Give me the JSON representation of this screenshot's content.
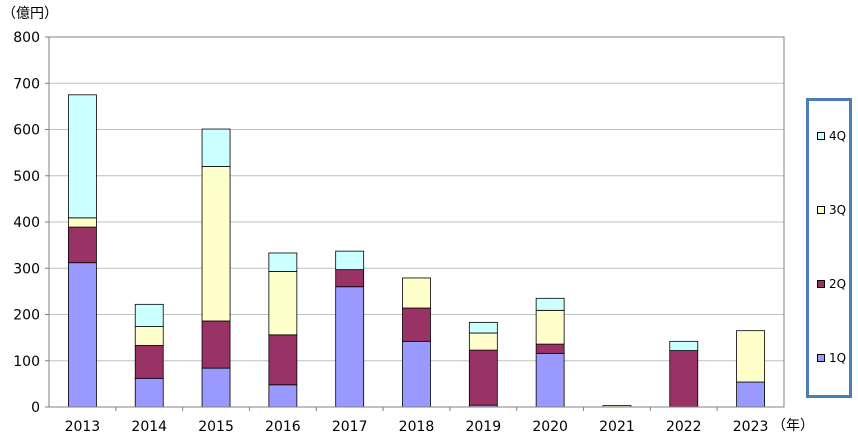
{
  "chart_data": {
    "type": "bar",
    "stacked": true,
    "unit_label": "（億円）",
    "x_unit": "（年）",
    "categories": [
      "2013",
      "2014",
      "2015",
      "2016",
      "2017",
      "2018",
      "2019",
      "2020",
      "2021",
      "2022",
      "2023"
    ],
    "ylim": [
      0,
      800
    ],
    "yticks": [
      "0",
      "100",
      "200",
      "300",
      "400",
      "500",
      "600",
      "700",
      "800"
    ],
    "grid": true,
    "legend_position": "right",
    "series": [
      {
        "name": "1Q",
        "color": "#9999ff",
        "values": [
          312,
          62,
          84,
          48,
          260,
          142,
          4,
          116,
          0,
          0,
          54
        ]
      },
      {
        "name": "2Q",
        "color": "#993366",
        "values": [
          77,
          71,
          102,
          108,
          37,
          72,
          119,
          20,
          0,
          122,
          0
        ]
      },
      {
        "name": "3Q",
        "color": "#ffffcc",
        "values": [
          20,
          41,
          334,
          137,
          0,
          65,
          37,
          73,
          3,
          0,
          111
        ]
      },
      {
        "name": "4Q",
        "color": "#ccffff",
        "values": [
          266,
          48,
          81,
          40,
          40,
          0,
          23,
          26,
          0,
          20,
          0
        ]
      }
    ],
    "legend_order": [
      "4Q",
      "3Q",
      "2Q",
      "1Q"
    ]
  }
}
